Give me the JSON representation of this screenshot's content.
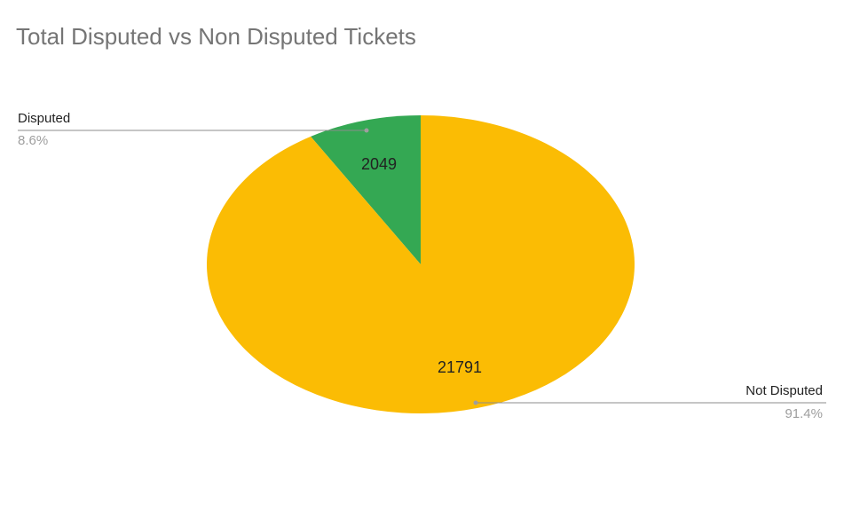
{
  "chart_data": {
    "type": "pie",
    "style": "3d",
    "title": "Total Disputed vs Non Disputed Tickets",
    "slices": [
      {
        "label": "Disputed",
        "value": 2049,
        "value_label": "2049",
        "percent_label": "8.6%",
        "color": "#34A853",
        "side_color": "#1E7A3A"
      },
      {
        "label": "Not Disputed",
        "value": 21791,
        "value_label": "21791",
        "percent_label": "91.4%",
        "color": "#FBBC04",
        "side_color": "#B48A00"
      }
    ],
    "legend": "none"
  }
}
